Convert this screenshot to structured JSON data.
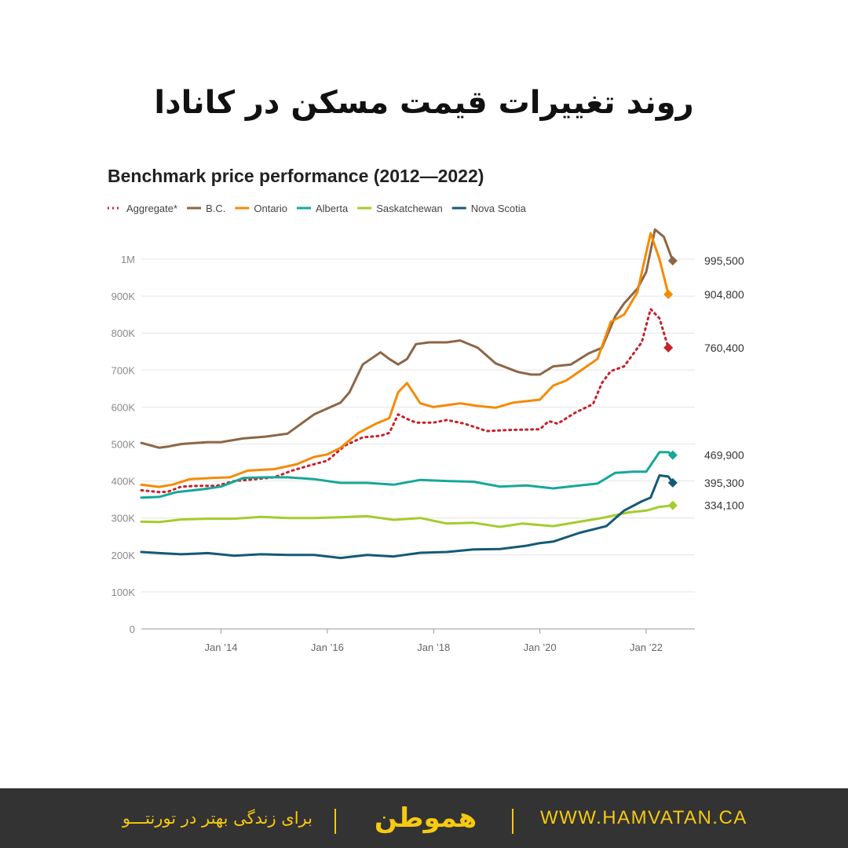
{
  "header": {
    "title": "روند تغییرات قیمت مسکن در کانادا"
  },
  "footer": {
    "tagline": "برای زندگی بهتر در تورنتـــو",
    "logo": "هموطن",
    "url": "WWW.HAMVATAN.CA"
  },
  "colors": {
    "footer_background": "#333333",
    "footer_accent": "#f7c911"
  },
  "chart_data": {
    "type": "line",
    "title": "Benchmark price performance (2012—2022)",
    "legend_position": "top-left",
    "grid": true,
    "ylim": [
      0,
      1000000
    ],
    "y_ticks": [
      0,
      100000,
      200000,
      300000,
      400000,
      500000,
      600000,
      700000,
      800000,
      900000,
      1000000
    ],
    "y_tick_labels": [
      "0",
      "100K",
      "200K",
      "300K",
      "400K",
      "500K",
      "600K",
      "700K",
      "800K",
      "900K",
      "1M"
    ],
    "x_ticks": [
      "2014-01",
      "2016-01",
      "2018-01",
      "2020-01",
      "2022-01"
    ],
    "x_tick_labels": [
      "Jan ’14",
      "Jan ’16",
      "Jan ’18",
      "Jan ’20",
      "Jan ’22"
    ],
    "xlim": [
      "2012-07",
      "2022-12"
    ],
    "series": [
      {
        "name": "Aggregate*",
        "color": "#c8202a",
        "style": "dotted",
        "end_label": "760,400",
        "end_marker": "diamond",
        "points": [
          [
            "2012-07",
            375000
          ],
          [
            "2012-11",
            370000
          ],
          [
            "2013-01",
            371000
          ],
          [
            "2013-04",
            385000
          ],
          [
            "2013-08",
            387000
          ],
          [
            "2013-12",
            387000
          ],
          [
            "2014-04",
            400000
          ],
          [
            "2014-08",
            404000
          ],
          [
            "2015-01",
            410000
          ],
          [
            "2015-05",
            428000
          ],
          [
            "2015-09",
            442000
          ],
          [
            "2016-01",
            455000
          ],
          [
            "2016-05",
            496000
          ],
          [
            "2016-09",
            518000
          ],
          [
            "2017-01",
            522000
          ],
          [
            "2017-03",
            530000
          ],
          [
            "2017-05",
            580000
          ],
          [
            "2017-07",
            568000
          ],
          [
            "2017-09",
            558000
          ],
          [
            "2018-01",
            558000
          ],
          [
            "2018-04",
            565000
          ],
          [
            "2018-08",
            555000
          ],
          [
            "2019-01",
            535000
          ],
          [
            "2019-06",
            538000
          ],
          [
            "2020-01",
            540000
          ],
          [
            "2020-03",
            562000
          ],
          [
            "2020-05",
            555000
          ],
          [
            "2020-09",
            585000
          ],
          [
            "2021-01",
            608000
          ],
          [
            "2021-03",
            665000
          ],
          [
            "2021-05",
            697000
          ],
          [
            "2021-08",
            710000
          ],
          [
            "2021-12",
            775000
          ],
          [
            "2022-02",
            865000
          ],
          [
            "2022-04",
            840000
          ],
          [
            "2022-06",
            760400
          ]
        ]
      },
      {
        "name": "B.C.",
        "color": "#8c6647",
        "style": "solid",
        "end_label": "995,500",
        "end_marker": "diamond",
        "points": [
          [
            "2012-07",
            503000
          ],
          [
            "2012-11",
            490000
          ],
          [
            "2013-01",
            493000
          ],
          [
            "2013-04",
            500000
          ],
          [
            "2013-10",
            505000
          ],
          [
            "2014-01",
            505000
          ],
          [
            "2014-06",
            515000
          ],
          [
            "2014-11",
            520000
          ],
          [
            "2015-04",
            528000
          ],
          [
            "2015-10",
            580000
          ],
          [
            "2016-04",
            612000
          ],
          [
            "2016-06",
            640000
          ],
          [
            "2016-09",
            715000
          ],
          [
            "2017-01",
            748000
          ],
          [
            "2017-03",
            730000
          ],
          [
            "2017-05",
            715000
          ],
          [
            "2017-07",
            730000
          ],
          [
            "2017-09",
            770000
          ],
          [
            "2017-12",
            775000
          ],
          [
            "2018-04",
            775000
          ],
          [
            "2018-07",
            780000
          ],
          [
            "2018-11",
            760000
          ],
          [
            "2019-03",
            718000
          ],
          [
            "2019-08",
            695000
          ],
          [
            "2019-11",
            688000
          ],
          [
            "2020-01",
            688000
          ],
          [
            "2020-04",
            710000
          ],
          [
            "2020-08",
            715000
          ],
          [
            "2020-12",
            745000
          ],
          [
            "2021-03",
            760000
          ],
          [
            "2021-06",
            845000
          ],
          [
            "2021-08",
            880000
          ],
          [
            "2021-11",
            920000
          ],
          [
            "2022-01",
            965000
          ],
          [
            "2022-03",
            1080000
          ],
          [
            "2022-05",
            1060000
          ],
          [
            "2022-07",
            995500
          ]
        ]
      },
      {
        "name": "Ontario",
        "color": "#f58a07",
        "style": "solid",
        "end_label": "904,800",
        "end_marker": "diamond",
        "points": [
          [
            "2012-07",
            390000
          ],
          [
            "2012-11",
            384000
          ],
          [
            "2013-02",
            390000
          ],
          [
            "2013-06",
            405000
          ],
          [
            "2013-11",
            408000
          ],
          [
            "2014-03",
            410000
          ],
          [
            "2014-07",
            428000
          ],
          [
            "2015-01",
            432000
          ],
          [
            "2015-06",
            445000
          ],
          [
            "2015-10",
            465000
          ],
          [
            "2016-01",
            472000
          ],
          [
            "2016-04",
            490000
          ],
          [
            "2016-08",
            530000
          ],
          [
            "2016-12",
            555000
          ],
          [
            "2017-03",
            570000
          ],
          [
            "2017-05",
            640000
          ],
          [
            "2017-07",
            665000
          ],
          [
            "2017-10",
            610000
          ],
          [
            "2018-01",
            600000
          ],
          [
            "2018-04",
            605000
          ],
          [
            "2018-07",
            610000
          ],
          [
            "2018-11",
            603000
          ],
          [
            "2019-03",
            598000
          ],
          [
            "2019-07",
            612000
          ],
          [
            "2020-01",
            620000
          ],
          [
            "2020-04",
            658000
          ],
          [
            "2020-07",
            672000
          ],
          [
            "2020-11",
            705000
          ],
          [
            "2021-02",
            730000
          ],
          [
            "2021-05",
            830000
          ],
          [
            "2021-08",
            850000
          ],
          [
            "2021-11",
            910000
          ],
          [
            "2022-02",
            1070000
          ],
          [
            "2022-04",
            1000000
          ],
          [
            "2022-06",
            904800
          ]
        ]
      },
      {
        "name": "Alberta",
        "color": "#16a899",
        "style": "solid",
        "end_label": "469,900",
        "end_marker": "diamond",
        "points": [
          [
            "2012-07",
            355000
          ],
          [
            "2012-11",
            357000
          ],
          [
            "2013-03",
            370000
          ],
          [
            "2013-09",
            378000
          ],
          [
            "2014-01",
            385000
          ],
          [
            "2014-06",
            408000
          ],
          [
            "2014-11",
            410000
          ],
          [
            "2015-04",
            410000
          ],
          [
            "2015-10",
            405000
          ],
          [
            "2016-04",
            395000
          ],
          [
            "2016-10",
            395000
          ],
          [
            "2017-04",
            390000
          ],
          [
            "2017-10",
            403000
          ],
          [
            "2018-04",
            400000
          ],
          [
            "2018-10",
            398000
          ],
          [
            "2019-04",
            385000
          ],
          [
            "2019-10",
            388000
          ],
          [
            "2020-04",
            380000
          ],
          [
            "2020-10",
            388000
          ],
          [
            "2021-02",
            393000
          ],
          [
            "2021-06",
            422000
          ],
          [
            "2021-10",
            425000
          ],
          [
            "2022-01",
            425000
          ],
          [
            "2022-04",
            478000
          ],
          [
            "2022-06",
            478000
          ],
          [
            "2022-07",
            469900
          ]
        ]
      },
      {
        "name": "Saskatchewan",
        "color": "#a4cc2c",
        "style": "solid",
        "end_label": "334,100",
        "end_marker": "diamond",
        "points": [
          [
            "2012-07",
            290000
          ],
          [
            "2012-11",
            289000
          ],
          [
            "2013-04",
            296000
          ],
          [
            "2013-10",
            298000
          ],
          [
            "2014-04",
            298000
          ],
          [
            "2014-10",
            303000
          ],
          [
            "2015-04",
            300000
          ],
          [
            "2015-10",
            300000
          ],
          [
            "2016-04",
            302000
          ],
          [
            "2016-10",
            305000
          ],
          [
            "2017-04",
            295000
          ],
          [
            "2017-10",
            300000
          ],
          [
            "2018-04",
            285000
          ],
          [
            "2018-10",
            287000
          ],
          [
            "2019-04",
            276000
          ],
          [
            "2019-09",
            285000
          ],
          [
            "2020-04",
            278000
          ],
          [
            "2020-10",
            290000
          ],
          [
            "2021-03",
            300000
          ],
          [
            "2021-09",
            315000
          ],
          [
            "2022-01",
            320000
          ],
          [
            "2022-04",
            330000
          ],
          [
            "2022-07",
            334100
          ]
        ]
      },
      {
        "name": "Nova Scotia",
        "color": "#145a76",
        "style": "solid",
        "end_label": "395,300",
        "end_marker": "diamond",
        "points": [
          [
            "2012-07",
            208000
          ],
          [
            "2012-11",
            205000
          ],
          [
            "2013-04",
            202000
          ],
          [
            "2013-10",
            205000
          ],
          [
            "2014-04",
            198000
          ],
          [
            "2014-10",
            202000
          ],
          [
            "2015-04",
            200000
          ],
          [
            "2015-10",
            200000
          ],
          [
            "2016-04",
            192000
          ],
          [
            "2016-10",
            200000
          ],
          [
            "2017-04",
            196000
          ],
          [
            "2017-10",
            206000
          ],
          [
            "2018-04",
            208000
          ],
          [
            "2018-10",
            215000
          ],
          [
            "2019-04",
            216000
          ],
          [
            "2019-10",
            225000
          ],
          [
            "2020-01",
            232000
          ],
          [
            "2020-04",
            236000
          ],
          [
            "2020-10",
            260000
          ],
          [
            "2021-04",
            278000
          ],
          [
            "2021-08",
            320000
          ],
          [
            "2021-12",
            345000
          ],
          [
            "2022-02",
            355000
          ],
          [
            "2022-04",
            415000
          ],
          [
            "2022-06",
            412000
          ],
          [
            "2022-07",
            395300
          ]
        ]
      }
    ]
  }
}
